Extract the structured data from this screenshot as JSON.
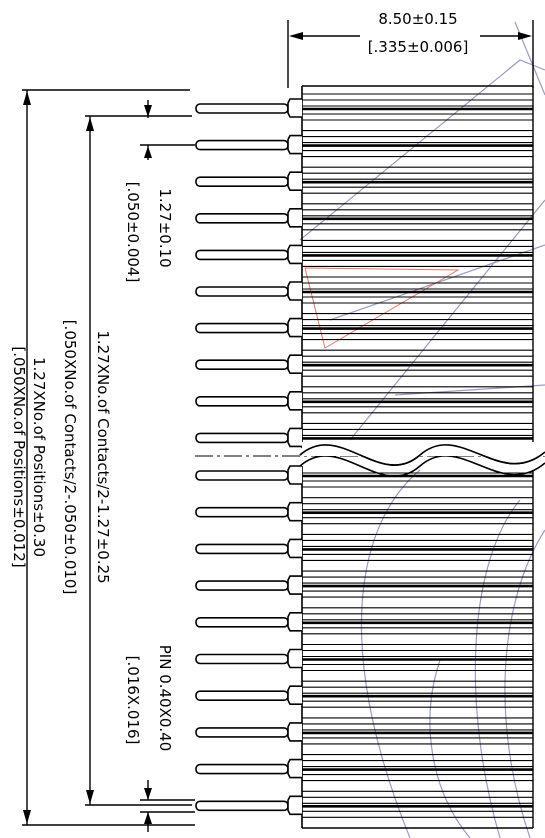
{
  "dimensions": {
    "width_mm": "8.50±0.15",
    "width_in": "[.335±0.006]",
    "pitch_mm": "1.27±0.10",
    "pitch_in": "[.050±0.004]",
    "contacts_mm": "1.27XNo.of Contacts/2-1.27±0.25",
    "contacts_in": "[.050XNo.of Contacts/2-.050±0.010]",
    "positions_mm": "1.27XNo.of Positions±0.30",
    "positions_in": "[.050XNo.of Positions±0.012]",
    "pin_mm": "PIN  0.40X0.40",
    "pin_in": "[.016X.016]"
  },
  "colors": {
    "line": "#000000",
    "watermark_gray": "#9c9cc4",
    "watermark_red": "#e07a6a"
  }
}
